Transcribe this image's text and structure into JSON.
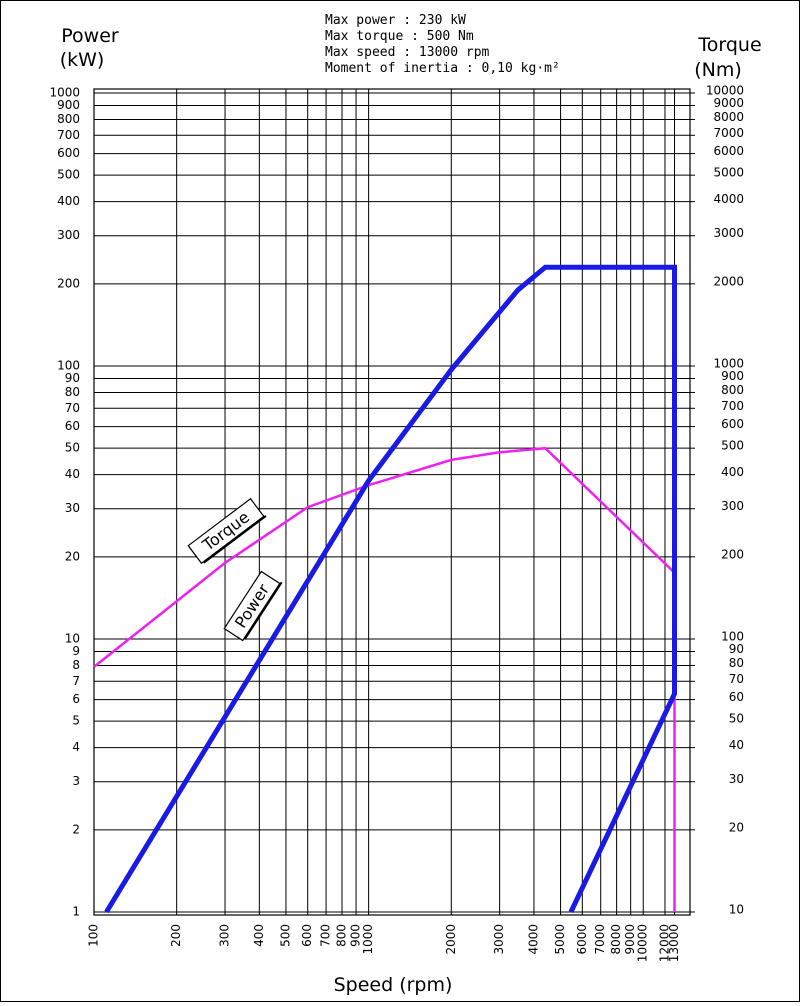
{
  "chart_data": {
    "type": "line",
    "annotations": [
      "Max power : 230 kW",
      "Max torque : 500 Nm",
      "Max speed : 13000 rpm",
      "Moment of inertia : 0,10 kg·m²"
    ],
    "ylabel": [
      "Power",
      "(kW)"
    ],
    "y2label": [
      "Torque",
      "(Nm)"
    ],
    "xlabel": "Speed (rpm)",
    "log_x": true,
    "log_y": true,
    "grid": true,
    "xlim": [
      100,
      14800
    ],
    "xticks": [
      100,
      200,
      300,
      400,
      500,
      600,
      700,
      800,
      900,
      1000,
      2000,
      3000,
      4000,
      5000,
      6000,
      7000,
      8000,
      9000,
      10000,
      12000,
      13000
    ],
    "ylim": [
      1,
      1000
    ],
    "yticks": [
      1,
      2,
      3,
      4,
      5,
      6,
      7,
      8,
      9,
      10,
      20,
      30,
      40,
      50,
      60,
      70,
      80,
      90,
      100,
      200,
      300,
      400,
      500,
      600,
      700,
      800,
      900,
      1000
    ],
    "y2lim": [
      10,
      10000
    ],
    "y2ticks": [
      10,
      20,
      30,
      40,
      50,
      60,
      70,
      80,
      90,
      100,
      200,
      300,
      400,
      500,
      600,
      700,
      800,
      900,
      1000,
      2000,
      3000,
      4000,
      5000,
      6000,
      7000,
      8000,
      9000,
      10000
    ],
    "series": [
      {
        "name": "Power",
        "color": "#1a1ae6",
        "x": [
          111,
          1000,
          2000,
          3500,
          4400,
          13000,
          13000,
          5450
        ],
        "values": [
          1,
          38,
          97,
          190,
          230,
          230,
          6.3,
          1
        ]
      },
      {
        "name": "Torque",
        "color": "#ee22ee",
        "axis": "y2",
        "x": [
          100,
          300,
          600,
          1000,
          2000,
          3000,
          4400,
          13000,
          13000
        ],
        "values": [
          79,
          190,
          304,
          366,
          453,
          483,
          500,
          175,
          10
        ]
      }
    ]
  }
}
